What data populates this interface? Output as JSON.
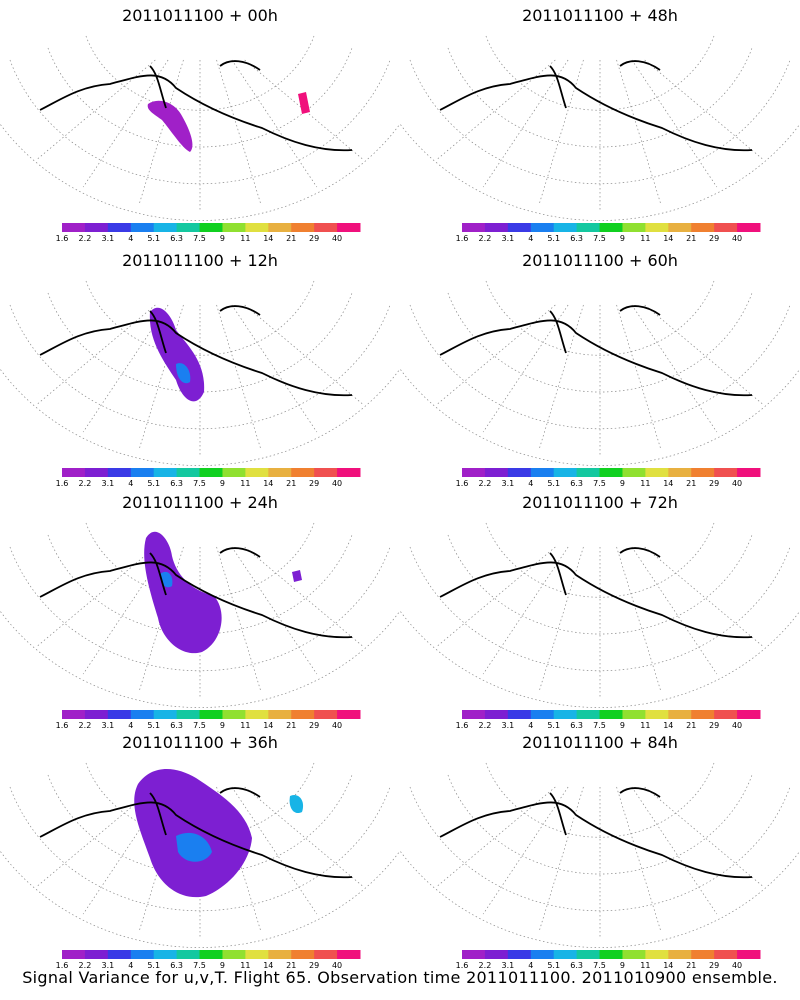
{
  "panels": [
    {
      "title": "2011011100 + 00h"
    },
    {
      "title": "2011011100 + 48h"
    },
    {
      "title": "2011011100 + 12h"
    },
    {
      "title": "2011011100 + 60h"
    },
    {
      "title": "2011011100 + 24h"
    },
    {
      "title": "2011011100 + 72h"
    },
    {
      "title": "2011011100 + 36h"
    },
    {
      "title": "2011011100 + 84h"
    }
  ],
  "colorbar": {
    "labels": [
      "1.6",
      "2.2",
      "3.1",
      "4",
      "5.1",
      "6.3",
      "7.5",
      "9",
      "11",
      "14",
      "21",
      "29",
      "40"
    ],
    "colors": [
      "#a020c8",
      "#7d1fd2",
      "#3a3ae6",
      "#1a7ff0",
      "#18b4e6",
      "#14c8a0",
      "#10d020",
      "#90e030",
      "#e0e040",
      "#e8b040",
      "#f08030",
      "#f05050",
      "#f0107c"
    ]
  },
  "footer": "Signal Variance for u,v,T. Flight 65. Observation time 2011011100. 2011010900 ensemble."
}
